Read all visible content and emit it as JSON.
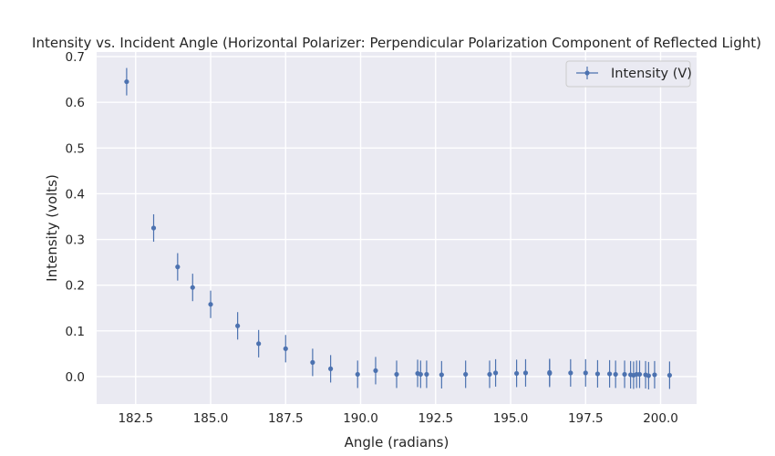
{
  "chart_data": {
    "type": "scatter",
    "title": "Intensity vs. Incident Angle (Horizontal Polarizer: Perpendicular Polarization Component of Reflected Light)",
    "xlabel": "Angle (radians)",
    "ylabel": "Intensity (volts)",
    "xlim": [
      181.2,
      201.2
    ],
    "ylim": [
      -0.06,
      0.71
    ],
    "xticks": [
      182.5,
      185.0,
      187.5,
      190.0,
      192.5,
      195.0,
      197.5,
      200.0
    ],
    "xtick_labels": [
      "182.5",
      "185.0",
      "187.5",
      "190.0",
      "192.5",
      "195.0",
      "197.5",
      "200.0"
    ],
    "yticks": [
      0.0,
      0.1,
      0.2,
      0.3,
      0.4,
      0.5,
      0.6,
      0.7
    ],
    "ytick_labels": [
      "0.0",
      "0.1",
      "0.2",
      "0.3",
      "0.4",
      "0.5",
      "0.6",
      "0.7"
    ],
    "grid": true,
    "legend_position": "top-right",
    "error_bar": 0.03,
    "series": [
      {
        "name": "Intensity (V)",
        "color": "#4c72b0",
        "x": [
          182.2,
          183.1,
          183.9,
          184.4,
          185.0,
          185.9,
          186.6,
          187.5,
          188.4,
          189.0,
          189.9,
          190.5,
          191.2,
          191.9,
          192.0,
          192.2,
          192.7,
          193.5,
          194.3,
          194.5,
          195.2,
          195.5,
          196.3,
          196.3,
          197.0,
          197.5,
          197.9,
          198.3,
          198.5,
          198.8,
          199.0,
          199.1,
          199.2,
          199.3,
          199.5,
          199.6,
          199.8,
          200.3
        ],
        "y": [
          0.645,
          0.325,
          0.24,
          0.195,
          0.158,
          0.111,
          0.072,
          0.061,
          0.031,
          0.017,
          0.005,
          0.013,
          0.005,
          0.007,
          0.005,
          0.005,
          0.004,
          0.005,
          0.005,
          0.008,
          0.007,
          0.008,
          0.009,
          0.007,
          0.008,
          0.008,
          0.006,
          0.006,
          0.005,
          0.005,
          0.004,
          0.003,
          0.005,
          0.005,
          0.004,
          0.002,
          0.004,
          0.003
        ]
      }
    ]
  }
}
